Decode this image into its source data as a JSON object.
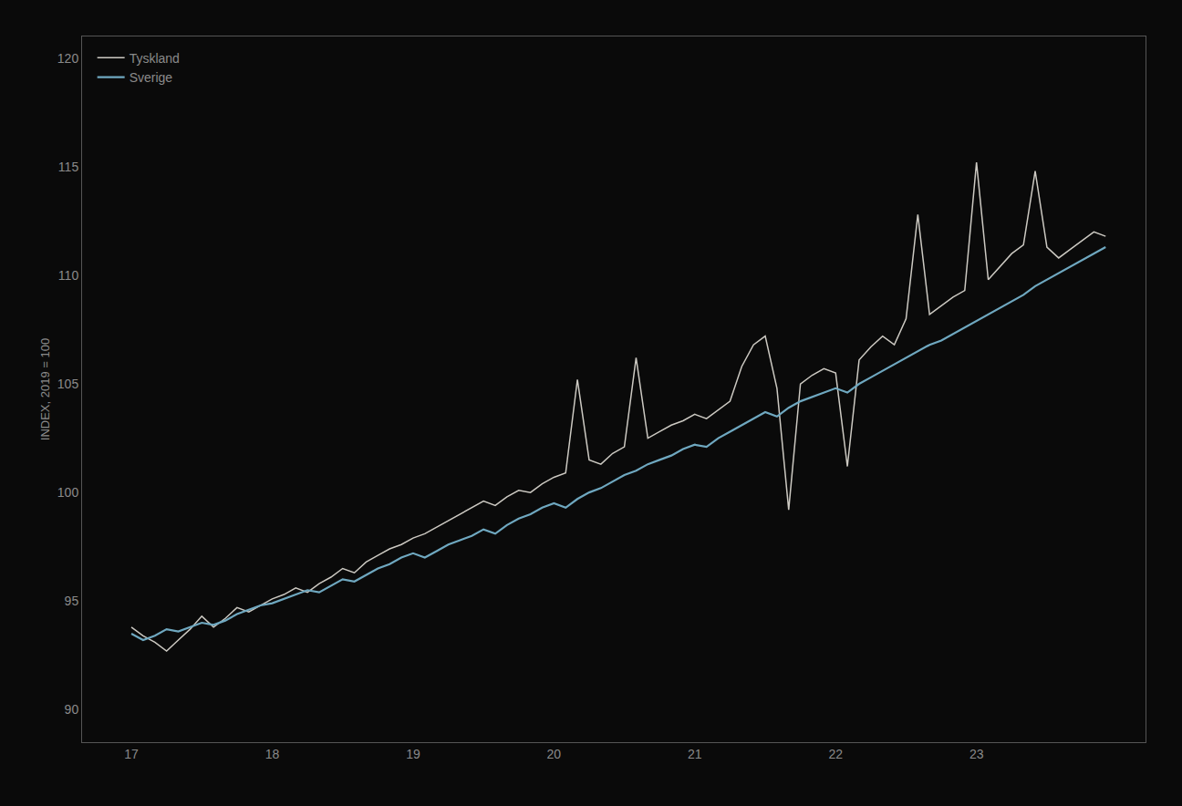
{
  "chart_data": {
    "type": "line",
    "ylabel": "INDEX, 2019 = 100",
    "x": [
      17,
      17.083333,
      17.166667,
      17.25,
      17.333333,
      17.416667,
      17.5,
      17.583333,
      17.666667,
      17.75,
      17.833333,
      17.916667,
      18,
      18.083333,
      18.166667,
      18.25,
      18.333333,
      18.416667,
      18.5,
      18.583333,
      18.666667,
      18.75,
      18.833333,
      18.916667,
      19,
      19.083333,
      19.166667,
      19.25,
      19.333333,
      19.416667,
      19.5,
      19.583333,
      19.666667,
      19.75,
      19.833333,
      19.916667,
      20,
      20.083333,
      20.166667,
      20.25,
      20.333333,
      20.416667,
      20.5,
      20.583333,
      20.666667,
      20.75,
      20.833333,
      20.916667,
      21,
      21.083333,
      21.166667,
      21.25,
      21.333333,
      21.416667,
      21.5,
      21.583333,
      21.666667,
      21.75,
      21.833333,
      21.916667,
      22,
      22.083333,
      22.166667,
      22.25,
      22.333333,
      22.416667,
      22.5,
      22.583333,
      22.666667,
      22.75,
      22.833333,
      22.916667,
      23,
      23.083333,
      23.166667,
      23.25,
      23.333333,
      23.416667,
      23.5,
      23.583333,
      23.666667,
      23.75,
      23.833333,
      23.916667
    ],
    "series": [
      {
        "name": "Tyskland",
        "color": "#ccc9c2",
        "values": [
          93.8,
          93.4,
          93.1,
          92.7,
          93.2,
          93.7,
          94.3,
          93.8,
          94.2,
          94.7,
          94.5,
          94.8,
          95.1,
          95.3,
          95.6,
          95.4,
          95.8,
          96.1,
          96.5,
          96.3,
          96.8,
          97.1,
          97.4,
          97.6,
          97.9,
          98.1,
          98.4,
          98.7,
          99.0,
          99.3,
          99.6,
          99.4,
          99.8,
          100.1,
          100.0,
          100.4,
          100.7,
          100.9,
          105.2,
          101.5,
          101.3,
          101.8,
          102.1,
          106.2,
          102.5,
          102.8,
          103.1,
          103.3,
          103.6,
          103.4,
          103.8,
          104.2,
          105.8,
          106.8,
          107.2,
          104.8,
          99.2,
          105.0,
          105.4,
          105.7,
          105.5,
          101.2,
          106.1,
          106.7,
          107.2,
          106.8,
          108.0,
          112.8,
          108.2,
          108.6,
          109.0,
          109.3,
          115.2,
          109.8,
          110.4,
          111.0,
          111.4,
          114.8,
          111.3,
          110.8,
          111.2,
          111.6,
          112.0,
          111.8
        ]
      },
      {
        "name": "Sverige",
        "color": "#6fa8c0",
        "values": [
          93.5,
          93.2,
          93.4,
          93.7,
          93.6,
          93.8,
          94.0,
          93.9,
          94.1,
          94.4,
          94.6,
          94.8,
          94.9,
          95.1,
          95.3,
          95.5,
          95.4,
          95.7,
          96.0,
          95.9,
          96.2,
          96.5,
          96.7,
          97.0,
          97.2,
          97.0,
          97.3,
          97.6,
          97.8,
          98.0,
          98.3,
          98.1,
          98.5,
          98.8,
          99.0,
          99.3,
          99.5,
          99.3,
          99.7,
          100.0,
          100.2,
          100.5,
          100.8,
          101.0,
          101.3,
          101.5,
          101.7,
          102.0,
          102.2,
          102.1,
          102.5,
          102.8,
          103.1,
          103.4,
          103.7,
          103.5,
          103.9,
          104.2,
          104.4,
          104.6,
          104.8,
          104.6,
          105.0,
          105.3,
          105.6,
          105.9,
          106.2,
          106.5,
          106.8,
          107.0,
          107.3,
          107.6,
          107.9,
          108.2,
          108.5,
          108.8,
          109.1,
          109.5,
          109.8,
          110.1,
          110.4,
          110.7,
          111.0,
          111.3
        ]
      }
    ],
    "xlim": [
      16.65,
      24.2
    ],
    "xticks": [
      17,
      18,
      19,
      20,
      21,
      22,
      23
    ],
    "ylim": [
      88.5,
      121
    ],
    "yticks": [
      90,
      95,
      100,
      105,
      110,
      115,
      120
    ],
    "grid": false,
    "legend": "upper left"
  }
}
